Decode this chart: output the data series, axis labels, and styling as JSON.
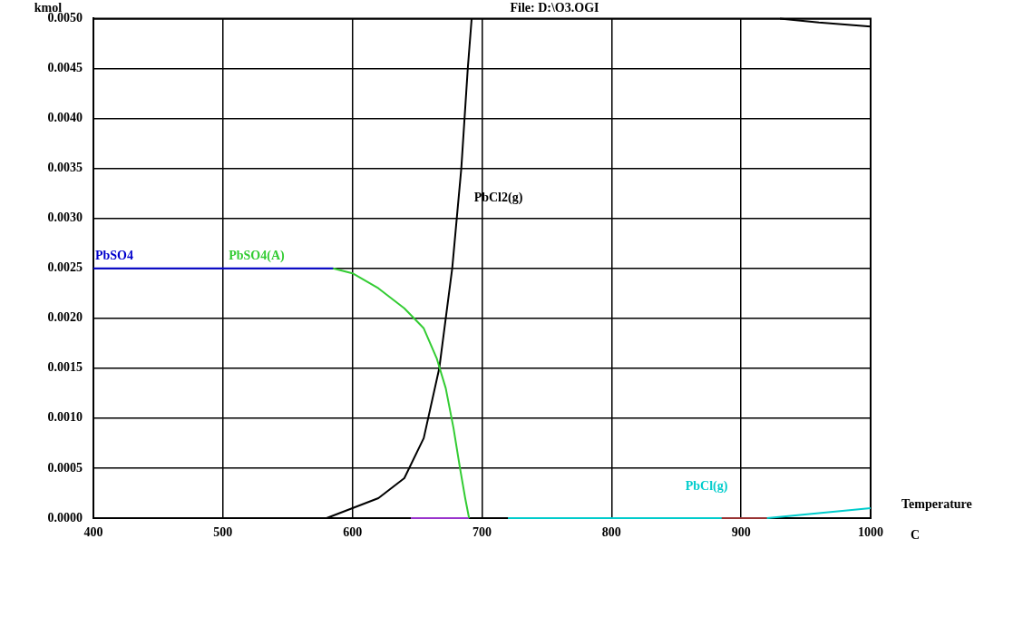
{
  "chart_data": {
    "type": "line",
    "title": "File: D:\\O3.OGI",
    "ylabel": "kmol",
    "xlabel": "Temperature C",
    "xlim": [
      400,
      1000
    ],
    "xticks": [
      400,
      500,
      600,
      700,
      800,
      900,
      1000
    ],
    "ylim": [
      0,
      0.005
    ],
    "yticks": [
      {
        "value": 0,
        "label": "0.0000"
      },
      {
        "value": 0.0005,
        "label": "0.0005"
      },
      {
        "value": 0.001,
        "label": "0.0010"
      },
      {
        "value": 0.0015,
        "label": "0.0015"
      },
      {
        "value": 0.002,
        "label": "0.0020"
      },
      {
        "value": 0.0025,
        "label": "0.0025"
      },
      {
        "value": 0.003,
        "label": "0.0030"
      },
      {
        "value": 0.0035,
        "label": "0.0035"
      },
      {
        "value": 0.004,
        "label": "0.0040"
      },
      {
        "value": 0.0045,
        "label": "0.0045"
      },
      {
        "value": 0.005,
        "label": "0.0050"
      }
    ],
    "grid": true,
    "legend": false,
    "marker": "none",
    "line_style": "solid",
    "series": [
      {
        "name": "PbSO4",
        "color": "#0000cc",
        "x": [
          400,
          500,
          585
        ],
        "values": [
          0.0025,
          0.0025,
          0.0025
        ]
      },
      {
        "name": "PbSO4(A)",
        "color": "#33cc33",
        "x": [
          585,
          600,
          620,
          640,
          655,
          665,
          672,
          678,
          683,
          687,
          690
        ],
        "values": [
          0.0025,
          0.00245,
          0.0023,
          0.0021,
          0.0019,
          0.0016,
          0.0013,
          0.0009,
          0.0005,
          0.0002,
          0
        ]
      },
      {
        "name": "PbCl2(g)",
        "color": "#000000",
        "x": [
          400,
          560,
          580,
          600,
          620,
          640,
          655,
          667,
          677,
          684,
          689,
          692,
          895,
          930,
          960,
          1000
        ],
        "values": [
          0,
          0,
          0,
          0.0001,
          0.0002,
          0.0004,
          0.0008,
          0.0015,
          0.0025,
          0.0035,
          0.0045,
          0.005,
          null,
          0.005,
          0.00496,
          0.00492
        ]
      },
      {
        "color": "#9933cc",
        "x": [
          645,
          690
        ],
        "values": [
          0,
          0
        ]
      },
      {
        "color": "#993333",
        "x": [
          885,
          920
        ],
        "values": [
          0,
          0
        ]
      },
      {
        "name": "PbCl(g)",
        "color": "#00cccc",
        "x": [
          720,
          800,
          880,
          920,
          960,
          1000
        ],
        "values": [
          0,
          0,
          0,
          0,
          5e-05,
          0.0001
        ]
      }
    ]
  }
}
